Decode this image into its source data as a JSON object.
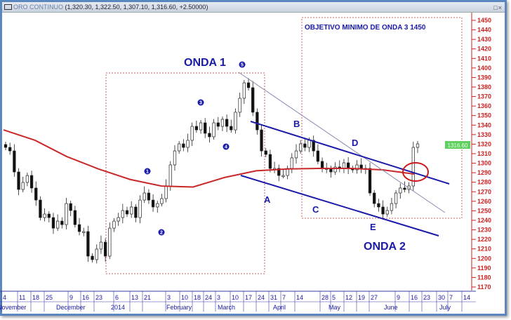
{
  "window": {
    "title": "ORO CONTINUO",
    "quote": "(1,320.30, 1,322.50, 1,307.10, 1,316.60, +2.50000)",
    "controls": "□×"
  },
  "colors": {
    "price_axis": "#cc2222",
    "annotation": "#1a1aa8",
    "moving_average": "#c8282a",
    "last_price_badge": "#5fcf5f",
    "trendline_thin": "#8a8ab0",
    "box": "#c86060"
  },
  "annotations": {
    "onda1": "ONDA 1",
    "onda2": "ONDA 2",
    "objective": "OBJETIVO MINIMO DE ONDA 3 1450",
    "A": "A",
    "B": "B",
    "C": "C",
    "D": "D",
    "E": "E",
    "n1": "1",
    "n2": "2",
    "n3": "3",
    "n4": "4",
    "n5": "5"
  },
  "chart_data": {
    "type": "candlestick",
    "title": "ORO CONTINUO",
    "ylim": [
      1165,
      1455
    ],
    "y_ticks": [
      1450,
      1440,
      1430,
      1420,
      1410,
      1400,
      1390,
      1380,
      1370,
      1360,
      1350,
      1340,
      1330,
      1320,
      1310,
      1300,
      1290,
      1280,
      1270,
      1260,
      1250,
      1240,
      1230,
      1220,
      1210,
      1200,
      1190,
      1180,
      1170
    ],
    "last_price": "1316.60",
    "x_day_ticks": [
      "4",
      "11",
      "18",
      "25",
      "9",
      "16",
      "23",
      "6",
      "13",
      "21",
      "3",
      "10",
      "18",
      "24",
      "3",
      "10",
      "17",
      "24",
      "31",
      "7",
      "14",
      "28",
      "5",
      "12",
      "19",
      "27",
      "9",
      "16",
      "23",
      "30",
      "7",
      "14"
    ],
    "x_month_ticks": [
      "November",
      "December",
      "2014",
      "February",
      "March",
      "April",
      "May",
      "June",
      "July"
    ],
    "closes": [
      1316.6,
      1312.9,
      1290.8,
      1272.4,
      1279.8,
      1287.1,
      1273.9,
      1261.3,
      1242.9,
      1246.6,
      1242.9,
      1231.8,
      1239.2,
      1235.5,
      1257.6,
      1250.3,
      1235.5,
      1228.2,
      1228.2,
      1202.4,
      1198.7,
      1209.8,
      1217.1,
      1202.4,
      1231.8,
      1239.2,
      1242.9,
      1250.3,
      1246.6,
      1254.0,
      1242.9,
      1261.3,
      1268.7,
      1261.3,
      1254.0,
      1257.6,
      1262.8,
      1276.1,
      1298.2,
      1312.9,
      1320.3,
      1316.6,
      1324.0,
      1338.7,
      1335.0,
      1342.4,
      1331.4,
      1327.7,
      1342.4,
      1338.7,
      1346.1,
      1338.7,
      1335.0,
      1353.5,
      1368.2,
      1384.4,
      1379.3,
      1353.5,
      1335.0,
      1312.9,
      1309.2,
      1294.5,
      1294.5,
      1287.1,
      1287.1,
      1294.5,
      1305.6,
      1312.9,
      1320.3,
      1316.6,
      1324.0,
      1312.9,
      1301.9,
      1294.5,
      1294.5,
      1290.8,
      1296.0,
      1294.5,
      1300.4,
      1294.5,
      1293.0,
      1298.2,
      1294.5,
      1294.5,
      1268.7,
      1257.6,
      1254.0,
      1246.6,
      1250.3,
      1257.6,
      1268.7,
      1273.9,
      1272.4,
      1276.1,
      1316.6,
      1320.3
    ],
    "moving_average": [
      1335,
      1324,
      1307,
      1294,
      1283,
      1276,
      1275,
      1285,
      1292,
      1294,
      1294.5,
      1294.5,
      1293,
      1288.6
    ]
  }
}
